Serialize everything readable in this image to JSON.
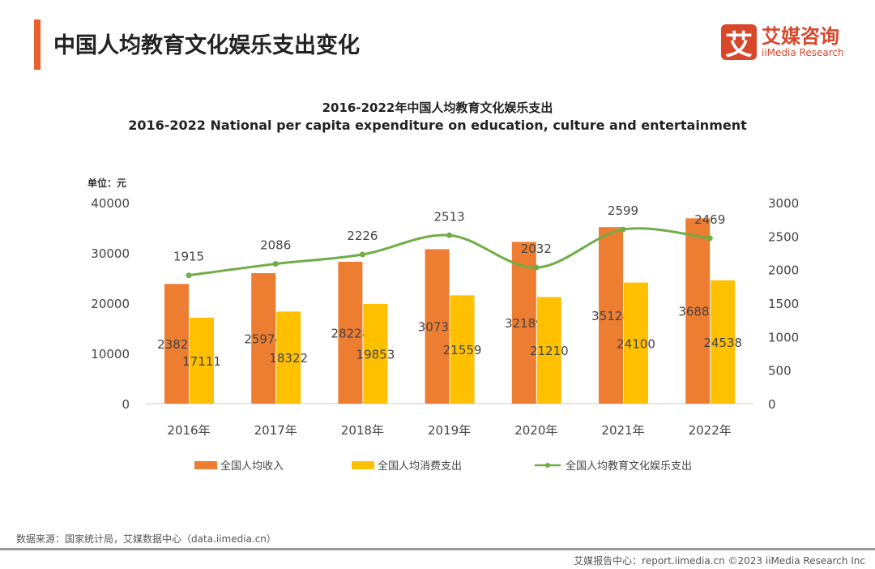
{
  "header": {
    "title": "中国人均教育文化娱乐支出变化",
    "logo_mark": "艾",
    "logo_cn": "艾媒咨询",
    "logo_en": "iiMedia Research"
  },
  "chart_data": {
    "type": "bar+line",
    "title": "2016-2022年中国人均教育文化娱乐支出",
    "subtitle": "2016-2022 National per capita expenditure on education, culture and entertainment",
    "unit_label": "单位：元",
    "categories": [
      "2016年",
      "2017年",
      "2018年",
      "2019年",
      "2020年",
      "2021年",
      "2022年"
    ],
    "left_axis": {
      "range": [
        0,
        40000
      ],
      "ticks": [
        0,
        10000,
        20000,
        30000,
        40000
      ]
    },
    "right_axis": {
      "range": [
        0,
        3000
      ],
      "ticks": [
        0,
        500,
        1000,
        1500,
        2000,
        2500,
        3000
      ]
    },
    "grid": false,
    "legend_position": "bottom",
    "series": [
      {
        "name": "全国人均收入",
        "type": "bar",
        "axis": "left",
        "color": "#ed7d31",
        "values": [
          23821,
          25974,
          28228,
          30733,
          32189,
          35128,
          36883
        ]
      },
      {
        "name": "全国人均消费支出",
        "type": "bar",
        "axis": "left",
        "color": "#ffc000",
        "values": [
          17111,
          18322,
          19853,
          21559,
          21210,
          24100,
          24538
        ]
      },
      {
        "name": "全国人均教育文化娱乐支出",
        "type": "line",
        "axis": "right",
        "color": "#70ad47",
        "values": [
          1915,
          2086,
          2226,
          2513,
          2032,
          2599,
          2469
        ]
      }
    ]
  },
  "footer": {
    "source": "数据来源：国家统计局，艾媒数据中心（data.iimedia.cn）",
    "credit": "艾媒报告中心：report.iimedia.cn ©2023 iiMedia Research Inc"
  }
}
